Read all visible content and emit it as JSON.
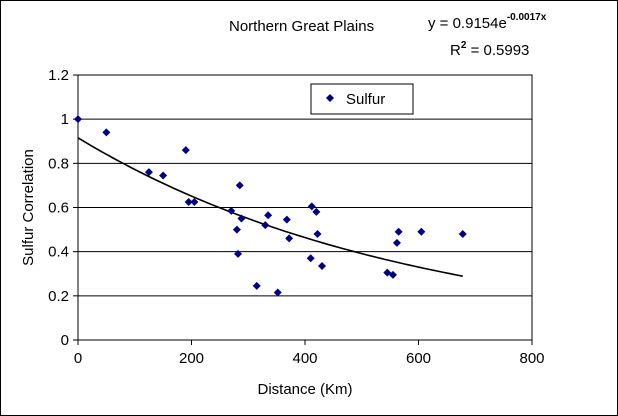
{
  "chart_data": {
    "type": "scatter",
    "title": "Northern Great Plains",
    "xlabel": "Distance (Km)",
    "ylabel": "Sulfur Correlation",
    "xlim": [
      0,
      800
    ],
    "ylim": [
      0,
      1.2
    ],
    "xticks": [
      "0",
      "200",
      "400",
      "600",
      "800"
    ],
    "yticks": [
      "0",
      "0.2",
      "0.4",
      "0.6",
      "0.8",
      "1",
      "1.2"
    ],
    "grid": "horizontal",
    "legend_position": "top-center",
    "series": [
      {
        "name": "Sulfur",
        "color": "#000080",
        "marker": "diamond",
        "points": [
          [
            0,
            1.0
          ],
          [
            50,
            0.94
          ],
          [
            125,
            0.76
          ],
          [
            150,
            0.745
          ],
          [
            190,
            0.86
          ],
          [
            195,
            0.625
          ],
          [
            205,
            0.625
          ],
          [
            270,
            0.585
          ],
          [
            280,
            0.5
          ],
          [
            282,
            0.39
          ],
          [
            285,
            0.7
          ],
          [
            288,
            0.55
          ],
          [
            315,
            0.245
          ],
          [
            330,
            0.52
          ],
          [
            335,
            0.565
          ],
          [
            352,
            0.215
          ],
          [
            368,
            0.545
          ],
          [
            372,
            0.46
          ],
          [
            410,
            0.37
          ],
          [
            412,
            0.605
          ],
          [
            420,
            0.58
          ],
          [
            422,
            0.48
          ],
          [
            430,
            0.335
          ],
          [
            545,
            0.305
          ],
          [
            555,
            0.295
          ],
          [
            562,
            0.44
          ],
          [
            565,
            0.49
          ],
          [
            605,
            0.49
          ],
          [
            678,
            0.48
          ]
        ]
      }
    ],
    "trendline": {
      "type": "exponential",
      "a": 0.9154,
      "b": -0.0017,
      "x_range": [
        0,
        678
      ],
      "color": "#000000"
    },
    "annotations": {
      "equation_prefix": "y = 0.9154e",
      "equation_exponent": "-0.0017x",
      "r2_prefix": "R",
      "r2_superscript": "2",
      "r2_value": " = 0.5993"
    }
  }
}
